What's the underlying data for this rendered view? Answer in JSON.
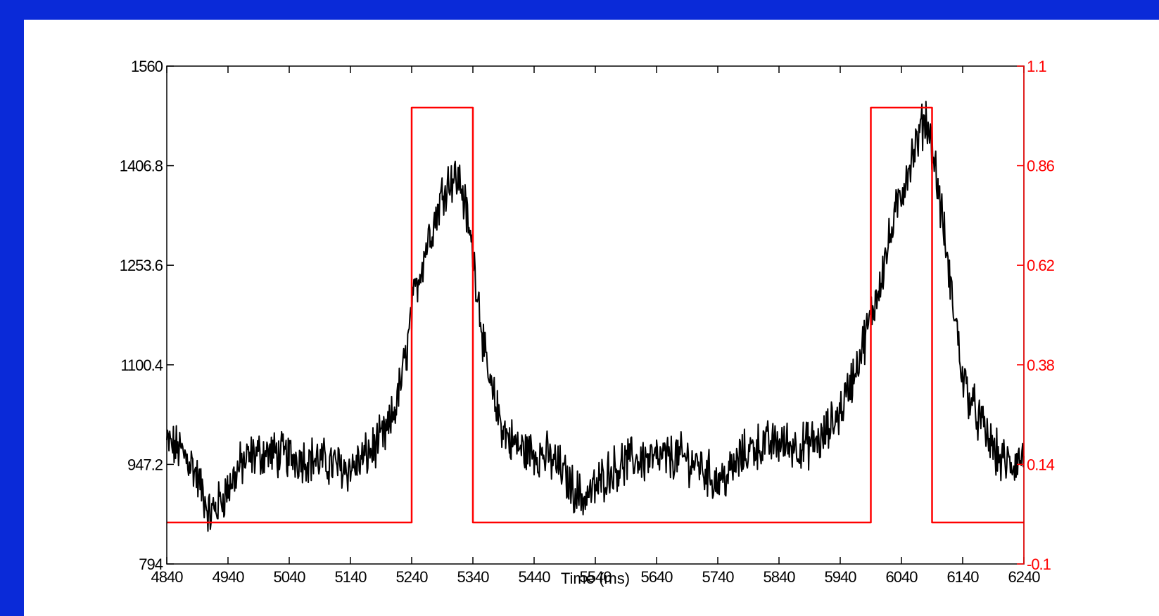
{
  "chart_data": {
    "type": "line",
    "xlabel": "Time (ms)",
    "xlim": [
      4840,
      6240
    ],
    "x_ticks": [
      4840,
      4940,
      5040,
      5140,
      5240,
      5340,
      5440,
      5540,
      5640,
      5740,
      5840,
      5940,
      6040,
      6140,
      6240
    ],
    "y_left": {
      "lim": [
        794,
        1560
      ],
      "ticks": [
        794,
        947.2,
        1100.4,
        1253.6,
        1406.8,
        1560
      ],
      "tick_labels": [
        "794",
        "947.2",
        "1100.4",
        "1253.6",
        "1406.8",
        "1560"
      ],
      "color": "#000000"
    },
    "y_right": {
      "lim": [
        -0.1,
        1.1
      ],
      "ticks": [
        -0.1,
        0.14,
        0.38,
        0.62,
        0.86,
        1.1
      ],
      "tick_labels": [
        "-0.1",
        "0.14",
        "0.38",
        "0.62",
        "0.86",
        "1.1"
      ],
      "color": "#ff0000"
    },
    "series": [
      {
        "axis": "left",
        "color": "#000000",
        "points": [
          [
            4840,
            980
          ],
          [
            4860,
            970
          ],
          [
            4880,
            950
          ],
          [
            4900,
            900
          ],
          [
            4910,
            870
          ],
          [
            4920,
            880
          ],
          [
            4940,
            910
          ],
          [
            4960,
            945
          ],
          [
            4980,
            960
          ],
          [
            5000,
            965
          ],
          [
            5040,
            960
          ],
          [
            5080,
            955
          ],
          [
            5100,
            950
          ],
          [
            5120,
            945
          ],
          [
            5140,
            940
          ],
          [
            5160,
            955
          ],
          [
            5180,
            975
          ],
          [
            5200,
            995
          ],
          [
            5215,
            1040
          ],
          [
            5230,
            1110
          ],
          [
            5240,
            1180
          ],
          [
            5250,
            1230
          ],
          [
            5260,
            1270
          ],
          [
            5270,
            1305
          ],
          [
            5280,
            1330
          ],
          [
            5290,
            1365
          ],
          [
            5300,
            1385
          ],
          [
            5310,
            1390
          ],
          [
            5320,
            1380
          ],
          [
            5330,
            1330
          ],
          [
            5340,
            1270
          ],
          [
            5350,
            1200
          ],
          [
            5360,
            1110
          ],
          [
            5370,
            1060
          ],
          [
            5380,
            1030
          ],
          [
            5390,
            1000
          ],
          [
            5400,
            985
          ],
          [
            5420,
            970
          ],
          [
            5440,
            965
          ],
          [
            5460,
            960
          ],
          [
            5480,
            945
          ],
          [
            5500,
            915
          ],
          [
            5520,
            895
          ],
          [
            5540,
            910
          ],
          [
            5560,
            935
          ],
          [
            5580,
            945
          ],
          [
            5600,
            955
          ],
          [
            5640,
            955
          ],
          [
            5680,
            960
          ],
          [
            5710,
            945
          ],
          [
            5740,
            920
          ],
          [
            5760,
            935
          ],
          [
            5780,
            960
          ],
          [
            5800,
            975
          ],
          [
            5840,
            980
          ],
          [
            5880,
            975
          ],
          [
            5910,
            985
          ],
          [
            5940,
            1030
          ],
          [
            5960,
            1080
          ],
          [
            5980,
            1140
          ],
          [
            5995,
            1190
          ],
          [
            6010,
            1250
          ],
          [
            6030,
            1330
          ],
          [
            6050,
            1400
          ],
          [
            6065,
            1440
          ],
          [
            6075,
            1470
          ],
          [
            6080,
            1480
          ],
          [
            6090,
            1440
          ],
          [
            6100,
            1370
          ],
          [
            6110,
            1300
          ],
          [
            6120,
            1220
          ],
          [
            6130,
            1160
          ],
          [
            6140,
            1080
          ],
          [
            6160,
            1030
          ],
          [
            6180,
            990
          ],
          [
            6200,
            955
          ],
          [
            6220,
            945
          ],
          [
            6240,
            960
          ]
        ]
      },
      {
        "axis": "right",
        "color": "#ff0000",
        "points": [
          [
            4840,
            0
          ],
          [
            5240,
            0
          ],
          [
            5240,
            1
          ],
          [
            5340,
            1
          ],
          [
            5340,
            0
          ],
          [
            5990,
            0
          ],
          [
            5990,
            1
          ],
          [
            6090,
            1
          ],
          [
            6090,
            0
          ],
          [
            6240,
            0
          ]
        ]
      }
    ]
  }
}
